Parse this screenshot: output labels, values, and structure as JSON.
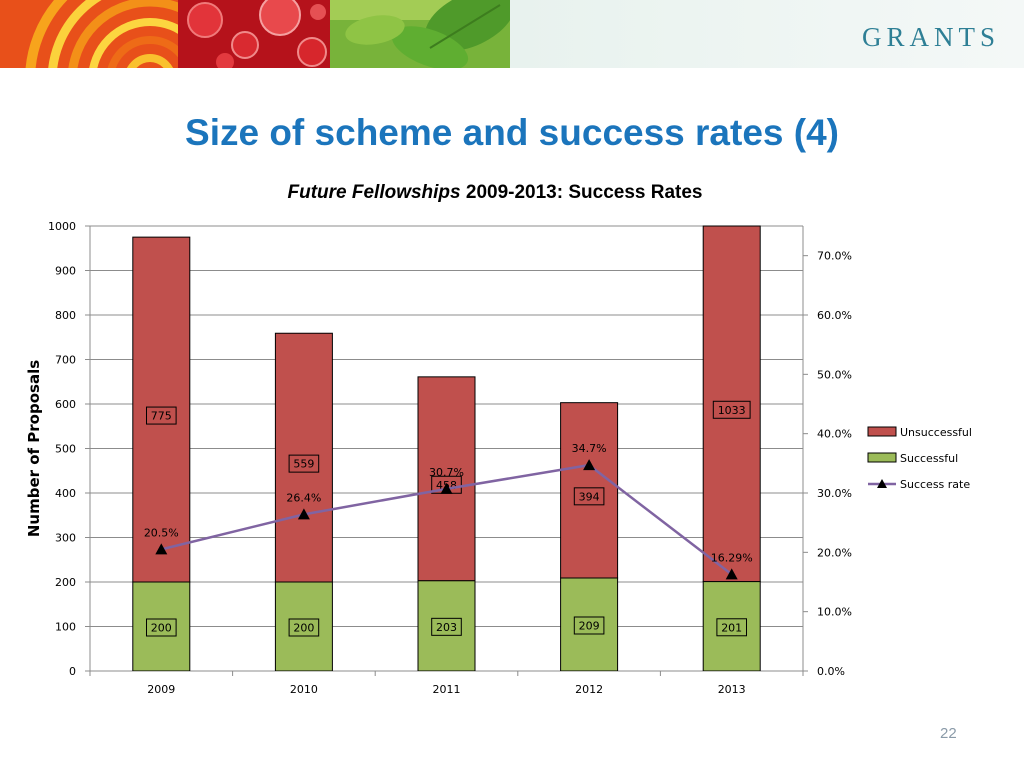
{
  "header": {
    "logo_text": "GRANTS"
  },
  "slide": {
    "title": "Size of scheme and success rates (4)",
    "page_number": "22"
  },
  "colors": {
    "title_blue": "#1b75bc",
    "unsuccessful": "#c0504d",
    "successful": "#9bbb59",
    "success_rate": "#8064a2",
    "logo": "#2e7f95"
  },
  "chart_data": {
    "type": "bar",
    "stacked": true,
    "title_italic": "Future Fellowships",
    "title_rest": " 2009-2013: Success Rates",
    "ylabel": "Number of Proposals",
    "categories": [
      "2009",
      "2010",
      "2011",
      "2012",
      "2013"
    ],
    "ylim": [
      0,
      1000
    ],
    "y_ticks": [
      "0",
      "100",
      "200",
      "300",
      "400",
      "500",
      "600",
      "700",
      "800",
      "900",
      "1000"
    ],
    "y2lim": [
      0,
      0.75
    ],
    "y2_ticks": [
      "0.0%",
      "10.0%",
      "20.0%",
      "30.0%",
      "40.0%",
      "50.0%",
      "60.0%",
      "70.0%"
    ],
    "grid": true,
    "legend_position": "right",
    "series": [
      {
        "name": "Successful",
        "type": "bar",
        "values": [
          200,
          200,
          203,
          209,
          201
        ],
        "labels": [
          "200",
          "200",
          "203",
          "209",
          "201"
        ]
      },
      {
        "name": "Unsuccessful",
        "type": "bar",
        "values": [
          775,
          559,
          458,
          394,
          1033
        ],
        "labels": [
          "775",
          "559",
          "458",
          "394",
          "1033"
        ]
      },
      {
        "name": "Success rate",
        "type": "line",
        "axis": "secondary",
        "marker": "triangle",
        "values": [
          0.205,
          0.264,
          0.307,
          0.347,
          0.1629
        ],
        "labels": [
          "20.5%",
          "26.4%",
          "30.7%",
          "34.7%",
          "16.29%"
        ]
      }
    ]
  }
}
